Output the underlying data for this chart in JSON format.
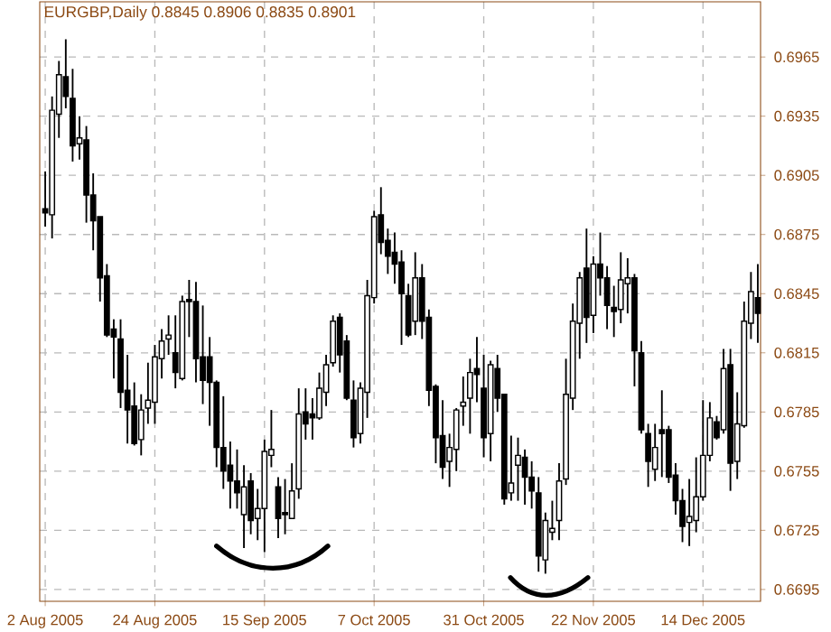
{
  "chart_data": {
    "type": "candlestick",
    "title": "EURGBP,Daily  0.8845 0.8906 0.8835 0.8901",
    "categories": [
      "2 Aug 2005",
      null,
      null,
      null,
      null,
      null,
      null,
      null,
      null,
      null,
      null,
      null,
      null,
      null,
      null,
      null,
      "24 Aug 2005",
      null,
      null,
      null,
      null,
      null,
      null,
      null,
      null,
      null,
      null,
      null,
      null,
      null,
      null,
      null,
      "15 Sep 2005",
      null,
      null,
      null,
      null,
      null,
      null,
      null,
      null,
      null,
      null,
      null,
      null,
      null,
      null,
      null,
      "7 Oct 2005",
      null,
      null,
      null,
      null,
      null,
      null,
      null,
      null,
      null,
      null,
      null,
      null,
      null,
      null,
      null,
      "31 Oct 2005",
      null,
      null,
      null,
      null,
      null,
      null,
      null,
      null,
      null,
      null,
      null,
      null,
      null,
      null,
      null,
      "22 Nov 2005",
      null,
      null,
      null,
      null,
      null,
      null,
      null,
      null,
      null,
      null,
      null,
      null,
      null,
      null,
      null,
      "14 Dec 2005",
      null,
      null,
      null,
      null,
      null,
      null,
      null,
      null
    ],
    "ohlc": [
      [
        0.6888,
        0.6907,
        0.6879,
        0.6886
      ],
      [
        0.6885,
        0.6945,
        0.6873,
        0.6938
      ],
      [
        0.6936,
        0.6963,
        0.6924,
        0.6956
      ],
      [
        0.6955,
        0.6974,
        0.6939,
        0.6945
      ],
      [
        0.6944,
        0.6959,
        0.6912,
        0.692
      ],
      [
        0.6921,
        0.6935,
        0.6913,
        0.6924
      ],
      [
        0.6923,
        0.693,
        0.6881,
        0.6895
      ],
      [
        0.6895,
        0.6906,
        0.6867,
        0.6882
      ],
      [
        0.6884,
        0.6884,
        0.6841,
        0.6853
      ],
      [
        0.6854,
        0.686,
        0.6823,
        0.6824
      ],
      [
        0.6827,
        0.6832,
        0.6802,
        0.6823
      ],
      [
        0.6822,
        0.6832,
        0.6787,
        0.6795
      ],
      [
        0.6796,
        0.6814,
        0.6769,
        0.6786
      ],
      [
        0.6788,
        0.68,
        0.6768,
        0.6769
      ],
      [
        0.6771,
        0.6794,
        0.6763,
        0.6786
      ],
      [
        0.6787,
        0.681,
        0.6779,
        0.6791
      ],
      [
        0.679,
        0.6819,
        0.6779,
        0.6813
      ],
      [
        0.6812,
        0.6827,
        0.6802,
        0.6821
      ],
      [
        0.6822,
        0.6834,
        0.6814,
        0.6824
      ],
      [
        0.6815,
        0.6834,
        0.6797,
        0.6805
      ],
      [
        0.6802,
        0.6844,
        0.6801,
        0.6841
      ],
      [
        0.6842,
        0.6852,
        0.6823,
        0.6841
      ],
      [
        0.6841,
        0.6851,
        0.68,
        0.6812
      ],
      [
        0.6813,
        0.6839,
        0.6789,
        0.6801
      ],
      [
        0.6813,
        0.6823,
        0.6778,
        0.68
      ],
      [
        0.68,
        0.6801,
        0.6757,
        0.6767
      ],
      [
        0.6767,
        0.6793,
        0.6746,
        0.6755
      ],
      [
        0.6758,
        0.677,
        0.6736,
        0.675
      ],
      [
        0.675,
        0.6766,
        0.6736,
        0.6744
      ],
      [
        0.6733,
        0.6758,
        0.6716,
        0.6747
      ],
      [
        0.675,
        0.6754,
        0.6723,
        0.673
      ],
      [
        0.6731,
        0.6746,
        0.672,
        0.6736
      ],
      [
        0.6736,
        0.6771,
        0.6714,
        0.6765
      ],
      [
        0.6763,
        0.6786,
        0.6757,
        0.6766
      ],
      [
        0.6747,
        0.6752,
        0.6721,
        0.6731
      ],
      [
        0.6734,
        0.6751,
        0.6723,
        0.6733
      ],
      [
        0.6731,
        0.6759,
        0.6731,
        0.6745
      ],
      [
        0.6746,
        0.6797,
        0.6741,
        0.6784
      ],
      [
        0.6785,
        0.6797,
        0.6771,
        0.6779
      ],
      [
        0.6784,
        0.6792,
        0.6771,
        0.6782
      ],
      [
        0.6782,
        0.6805,
        0.6781,
        0.6797
      ],
      [
        0.6795,
        0.6814,
        0.6788,
        0.6809
      ],
      [
        0.681,
        0.6834,
        0.6808,
        0.6831
      ],
      [
        0.6833,
        0.6835,
        0.6805,
        0.6814
      ],
      [
        0.6821,
        0.6824,
        0.6791,
        0.6792
      ],
      [
        0.6791,
        0.6801,
        0.6767,
        0.6772
      ],
      [
        0.6774,
        0.68,
        0.6769,
        0.6797
      ],
      [
        0.6795,
        0.6852,
        0.6782,
        0.6844
      ],
      [
        0.6843,
        0.6887,
        0.684,
        0.6884
      ],
      [
        0.6885,
        0.6899,
        0.6865,
        0.6871
      ],
      [
        0.6872,
        0.6878,
        0.6855,
        0.6864
      ],
      [
        0.6866,
        0.6876,
        0.685,
        0.686
      ],
      [
        0.6861,
        0.6867,
        0.6819,
        0.6845
      ],
      [
        0.6844,
        0.685,
        0.6823,
        0.6824
      ],
      [
        0.6831,
        0.6866,
        0.6824,
        0.6853
      ],
      [
        0.6853,
        0.686,
        0.6822,
        0.6831
      ],
      [
        0.6833,
        0.6837,
        0.6788,
        0.6796
      ],
      [
        0.6798,
        0.6799,
        0.6759,
        0.6772
      ],
      [
        0.6773,
        0.6791,
        0.6751,
        0.6757
      ],
      [
        0.676,
        0.6774,
        0.6747,
        0.6767
      ],
      [
        0.6766,
        0.6787,
        0.6755,
        0.6786
      ],
      [
        0.6788,
        0.6803,
        0.6778,
        0.679
      ],
      [
        0.6792,
        0.6812,
        0.6774,
        0.6805
      ],
      [
        0.6807,
        0.6823,
        0.679,
        0.6804
      ],
      [
        0.6797,
        0.6814,
        0.6762,
        0.6772
      ],
      [
        0.6774,
        0.6811,
        0.676,
        0.6809
      ],
      [
        0.6807,
        0.6814,
        0.6785,
        0.6792
      ],
      [
        0.6794,
        0.6794,
        0.6738,
        0.6741
      ],
      [
        0.6744,
        0.6773,
        0.674,
        0.6749
      ],
      [
        0.6758,
        0.6772,
        0.674,
        0.6763
      ],
      [
        0.6762,
        0.6766,
        0.6738,
        0.6752
      ],
      [
        0.6752,
        0.676,
        0.6736,
        0.6745
      ],
      [
        0.6744,
        0.6752,
        0.6704,
        0.6712
      ],
      [
        0.671,
        0.6734,
        0.6703,
        0.673
      ],
      [
        0.6724,
        0.674,
        0.672,
        0.6726
      ],
      [
        0.673,
        0.6759,
        0.672,
        0.675
      ],
      [
        0.6751,
        0.6812,
        0.6748,
        0.6794
      ],
      [
        0.6792,
        0.684,
        0.6786,
        0.6831
      ],
      [
        0.683,
        0.6856,
        0.6812,
        0.6853
      ],
      [
        0.6858,
        0.6878,
        0.682,
        0.6833
      ],
      [
        0.6834,
        0.6864,
        0.6825,
        0.686
      ],
      [
        0.686,
        0.6876,
        0.6844,
        0.6853
      ],
      [
        0.6853,
        0.6859,
        0.6827,
        0.6839
      ],
      [
        0.6838,
        0.6849,
        0.6823,
        0.6836
      ],
      [
        0.6837,
        0.6866,
        0.683,
        0.6852
      ],
      [
        0.685,
        0.6863,
        0.6835,
        0.6853
      ],
      [
        0.6853,
        0.6855,
        0.6798,
        0.6816
      ],
      [
        0.6815,
        0.6821,
        0.6774,
        0.6776
      ],
      [
        0.6774,
        0.6779,
        0.6747,
        0.676
      ],
      [
        0.6756,
        0.6779,
        0.675,
        0.6767
      ],
      [
        0.6776,
        0.6796,
        0.6752,
        0.6774
      ],
      [
        0.6776,
        0.6778,
        0.6749,
        0.6752
      ],
      [
        0.6753,
        0.6759,
        0.6733,
        0.674
      ],
      [
        0.674,
        0.6746,
        0.6719,
        0.6727
      ],
      [
        0.6729,
        0.6751,
        0.6717,
        0.6732
      ],
      [
        0.673,
        0.6762,
        0.6724,
        0.6742
      ],
      [
        0.6742,
        0.6791,
        0.674,
        0.6763
      ],
      [
        0.6763,
        0.679,
        0.676,
        0.6782
      ],
      [
        0.678,
        0.6783,
        0.6771,
        0.6772
      ],
      [
        0.6776,
        0.6817,
        0.6774,
        0.6807
      ],
      [
        0.6809,
        0.6817,
        0.6745,
        0.6759
      ],
      [
        0.676,
        0.6795,
        0.6751,
        0.6779
      ],
      [
        0.6778,
        0.6841,
        0.6777,
        0.6831
      ],
      [
        0.683,
        0.6856,
        0.6822,
        0.6846
      ],
      [
        0.6843,
        0.686,
        0.682,
        0.6835
      ]
    ],
    "ylim": [
      0.6689,
      0.6993
    ],
    "yticks": [
      0.6695,
      0.6725,
      0.6755,
      0.6785,
      0.6815,
      0.6845,
      0.6875,
      0.6905,
      0.6935,
      0.6965
    ],
    "grid": true
  }
}
